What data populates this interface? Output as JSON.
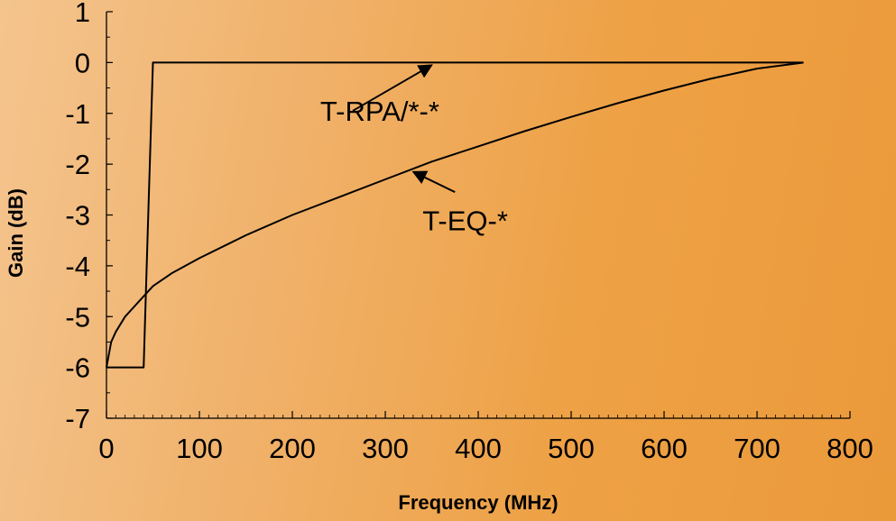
{
  "chart_data": {
    "type": "line",
    "title": "",
    "xlabel": "Frequency (MHz)",
    "ylabel": "Gain (dB)",
    "xlim": [
      0,
      800
    ],
    "ylim": [
      -7,
      1
    ],
    "x_ticks": [
      0,
      100,
      200,
      300,
      400,
      500,
      600,
      700,
      800
    ],
    "y_ticks": [
      1,
      0,
      -1,
      -2,
      -3,
      -4,
      -5,
      -6,
      -7
    ],
    "x_tick_labels": [
      "0",
      "100",
      "200",
      "300",
      "400",
      "500",
      "600",
      "700",
      "800"
    ],
    "y_tick_labels": [
      "1",
      "0",
      "-1",
      "-2",
      "-3",
      "-4",
      "-5",
      "-6",
      "-7"
    ],
    "grid": false,
    "legend": "none",
    "line_color": "#000000",
    "series": [
      {
        "x": [
          0,
          5,
          10,
          20,
          30,
          40,
          45,
          50,
          52,
          100,
          200,
          300,
          400,
          500,
          600,
          700,
          750
        ],
        "y": [
          -6,
          -6,
          -6,
          -6,
          -6,
          -6,
          -3,
          0,
          0,
          0,
          0,
          0,
          0,
          0,
          0,
          0,
          0
        ]
      },
      {
        "x": [
          0,
          5,
          10,
          20,
          30,
          40,
          50,
          70,
          100,
          150,
          200,
          250,
          300,
          350,
          400,
          450,
          500,
          550,
          600,
          650,
          700,
          750
        ],
        "y": [
          -6,
          -5.5,
          -5.3,
          -5,
          -4.8,
          -4.6,
          -4.4,
          -4.15,
          -3.85,
          -3.4,
          -3.0,
          -2.65,
          -2.3,
          -1.95,
          -1.65,
          -1.35,
          -1.07,
          -0.8,
          -0.55,
          -0.32,
          -0.12,
          0
        ]
      }
    ],
    "annotations": [
      {
        "text": "T-RPA/*-*",
        "x": 230,
        "y": -1.15,
        "arrow_from": [
          265,
          -0.95
        ],
        "arrow_to": [
          350,
          -0.05
        ]
      },
      {
        "text": "T-EQ-*",
        "x": 340,
        "y": -3.3,
        "arrow_from": [
          375,
          -2.55
        ],
        "arrow_to": [
          330,
          -2.15
        ]
      }
    ]
  }
}
